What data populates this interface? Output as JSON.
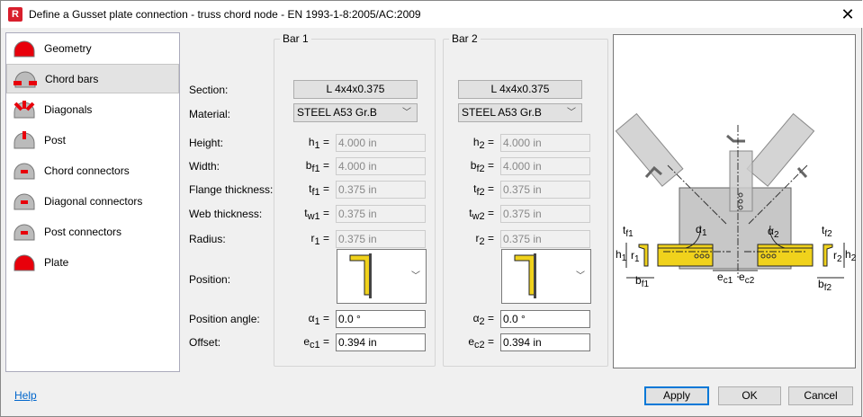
{
  "window": {
    "title": "Define a Gusset plate connection - truss chord node - EN 1993-1-8:2005/AC:2009",
    "app_icon": "R",
    "close": "✕"
  },
  "sidebar": {
    "selected": "Chord bars",
    "items": [
      {
        "label": "Geometry",
        "icon": "geometry-icon"
      },
      {
        "label": "Chord bars",
        "icon": "chord-bars-icon"
      },
      {
        "label": "Diagonals",
        "icon": "diagonals-icon"
      },
      {
        "label": "Post",
        "icon": "post-icon"
      },
      {
        "label": "Chord connectors",
        "icon": "chord-connectors-icon"
      },
      {
        "label": "Diagonal connectors",
        "icon": "diagonal-connectors-icon"
      },
      {
        "label": "Post connectors",
        "icon": "post-connectors-icon"
      },
      {
        "label": "Plate",
        "icon": "plate-icon"
      }
    ]
  },
  "labels": {
    "section": "Section:",
    "material": "Material:",
    "height": "Height:",
    "width": "Width:",
    "flange": "Flange thickness:",
    "web": "Web thickness:",
    "radius": "Radius:",
    "position": "Position:",
    "angle": "Position angle:",
    "offset": "Offset:"
  },
  "bar1": {
    "title": "Bar 1",
    "section": "L 4x4x0.375",
    "material": "STEEL A53 Gr.B",
    "h": {
      "sym": "h",
      "sub": "1",
      "value": "4.000 in"
    },
    "bf": {
      "sym": "b",
      "sub": "f1",
      "value": "4.000 in"
    },
    "tf": {
      "sym": "t",
      "sub": "f1",
      "value": "0.375 in"
    },
    "tw": {
      "sym": "t",
      "sub": "w1",
      "value": "0.375 in"
    },
    "r": {
      "sym": "r",
      "sub": "1",
      "value": "0.375 in"
    },
    "alpha": {
      "sym": "α",
      "sub": "1",
      "value": "0.0 °"
    },
    "ec": {
      "sym": "e",
      "sub": "c1",
      "value": "0.394 in"
    }
  },
  "bar2": {
    "title": "Bar 2",
    "section": "L 4x4x0.375",
    "material": "STEEL A53 Gr.B",
    "h": {
      "sym": "h",
      "sub": "2",
      "value": "4.000 in"
    },
    "bf": {
      "sym": "b",
      "sub": "f2",
      "value": "4.000 in"
    },
    "tf": {
      "sym": "t",
      "sub": "f2",
      "value": "0.375 in"
    },
    "tw": {
      "sym": "t",
      "sub": "w2",
      "value": "0.375 in"
    },
    "r": {
      "sym": "r",
      "sub": "2",
      "value": "0.375 in"
    },
    "alpha": {
      "sym": "α",
      "sub": "2",
      "value": "0.0 °"
    },
    "ec": {
      "sym": "e",
      "sub": "c2",
      "value": "0.394 in"
    }
  },
  "eq": "=",
  "diagram": {
    "labels": {
      "tf1": "t",
      "tf1s": "f1",
      "h1": "h",
      "h1s": "1",
      "r1": "r",
      "r1s": "1",
      "bf1": "b",
      "bf1s": "f1",
      "a1": "α",
      "a1s": "1",
      "a2": "α",
      "a2s": "2",
      "ec1": "e",
      "ec1s": "c1",
      "ec2": "e",
      "ec2s": "c2",
      "tf2": "t",
      "tf2s": "f2",
      "h2": "h",
      "h2s": "2",
      "r2": "r",
      "r2s": "2",
      "bf2": "b",
      "bf2s": "f2"
    }
  },
  "footer": {
    "help": "Help",
    "apply": "Apply",
    "ok": "OK",
    "cancel": "Cancel"
  },
  "colors": {
    "accent": "#0078d7",
    "icon_red": "#e8000b",
    "section_yellow": "#f0d21c"
  }
}
